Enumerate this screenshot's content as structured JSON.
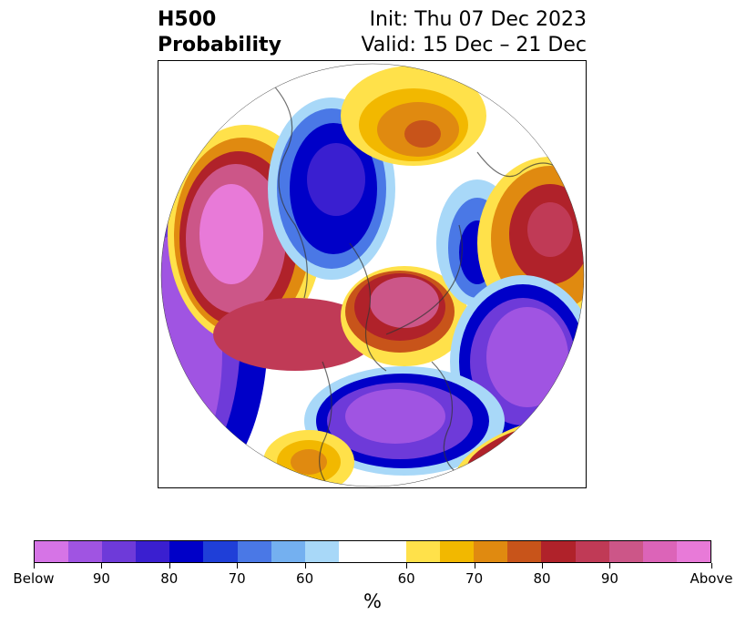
{
  "title": {
    "left_line1": "H500",
    "left_line2": "Probability",
    "right_line1": "Init: Thu 07 Dec 2023",
    "right_line2": "Valid: 15 Dec – 21 Dec"
  },
  "colorbar": {
    "unit": "%",
    "colors": [
      "#d674e6",
      "#a054e2",
      "#6e3ad9",
      "#3a1fd0",
      "#0000c8",
      "#1f3fd8",
      "#4a78e6",
      "#74b0f0",
      "#a8d8f8",
      "#ffffff",
      "#ffe14a",
      "#f2b800",
      "#e08a10",
      "#c8541a",
      "#b0222a",
      "#c03a56",
      "#cc5688",
      "#dc64b8",
      "#e87ad8"
    ],
    "tick_labels": [
      "Below",
      "90",
      "80",
      "70",
      "60",
      "60",
      "70",
      "80",
      "90",
      "Above"
    ]
  },
  "map": {
    "projection": "north polar stereographic",
    "anomalies": [
      {
        "name": "west-pacific-alaska-above",
        "sign": "above"
      },
      {
        "name": "north-atlantic-above",
        "sign": "above"
      },
      {
        "name": "northeast-asia-above",
        "sign": "above"
      },
      {
        "name": "us-mexico-above",
        "sign": "above"
      },
      {
        "name": "east-siberia-below",
        "sign": "below"
      },
      {
        "name": "europe-below",
        "sign": "below"
      },
      {
        "name": "eastern-us-below",
        "sign": "below"
      },
      {
        "name": "west-pacific-below",
        "sign": "below"
      },
      {
        "name": "east-atlantic-below",
        "sign": "below"
      }
    ]
  }
}
